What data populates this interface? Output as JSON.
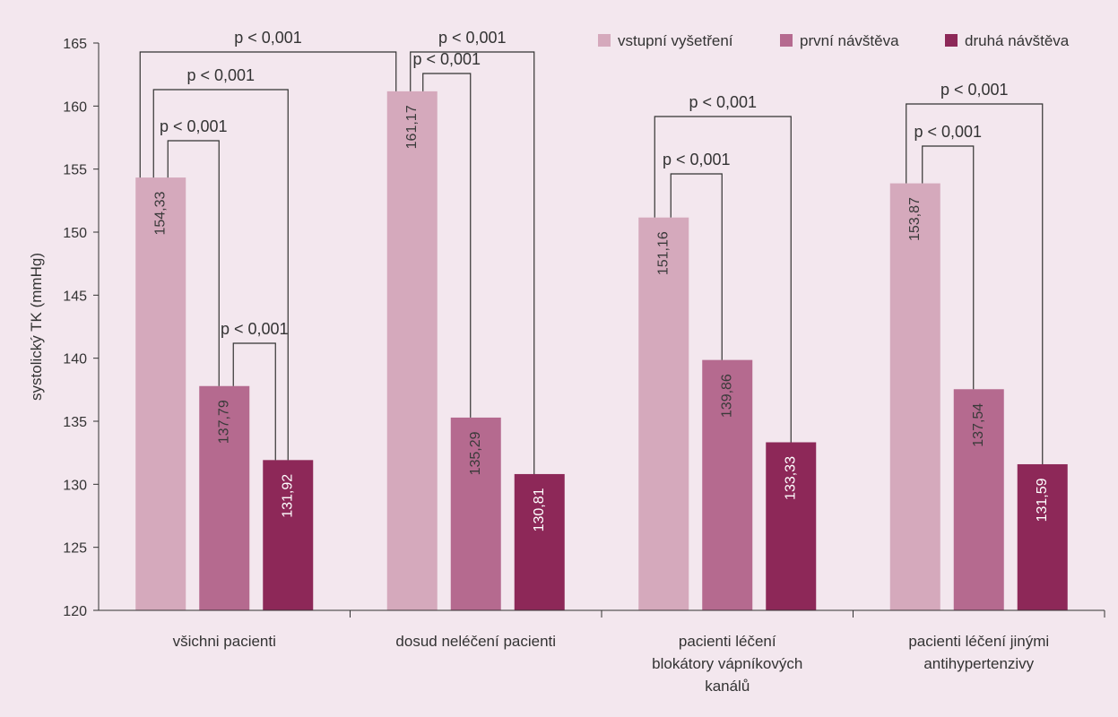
{
  "chart_data": {
    "type": "bar",
    "ylabel": "systolický TK (mmHg)",
    "ylim": [
      120,
      165
    ],
    "yticks": [
      "120",
      "125",
      "130",
      "135",
      "140",
      "145",
      "150",
      "155",
      "160",
      "165"
    ],
    "grid": false,
    "legend_position": "top-right",
    "categories": [
      [
        "všichni pacienti"
      ],
      [
        "dosud neléčení pacienti"
      ],
      [
        "pacienti léčení",
        "blokátory vápníkových",
        "kanálů"
      ],
      [
        "pacienti léčení jinými",
        "antihypertenzivy"
      ]
    ],
    "series": [
      {
        "name": "vstupní vyšetření",
        "color": "#d5a9bc",
        "values": [
          154.33,
          161.17,
          151.16,
          153.87
        ],
        "labels": [
          "154,33",
          "161,17",
          "151,16",
          "153,87"
        ]
      },
      {
        "name": "první návštěva",
        "color": "#b56a8f",
        "values": [
          137.79,
          135.29,
          139.86,
          137.54
        ],
        "labels": [
          "137,79",
          "135,29",
          "139,86",
          "137,54"
        ]
      },
      {
        "name": "druhá návštěva",
        "color": "#8d2858",
        "values": [
          131.92,
          130.81,
          133.33,
          131.59
        ],
        "labels": [
          "131,92",
          "130,81",
          "133,33",
          "131,59"
        ]
      }
    ],
    "annotations": [
      {
        "text": "p < 0,001",
        "group": 0,
        "from": 0,
        "to": 1
      },
      {
        "text": "p < 0,001",
        "group": 0,
        "from": 0,
        "to": 2
      },
      {
        "text": "p < 0,001",
        "group": 0,
        "from": 1,
        "to": 2
      },
      {
        "text": "p < 0,001",
        "group": 1,
        "from": 0,
        "to": 1
      },
      {
        "text": "p < 0,001",
        "group": 1,
        "from": 0,
        "to": 2
      },
      {
        "text": "p < 0,001",
        "group": 2,
        "from": 0,
        "to": 1
      },
      {
        "text": "p < 0,001",
        "group": 2,
        "from": 0,
        "to": 2
      },
      {
        "text": "p < 0,001",
        "group": 3,
        "from": 0,
        "to": 1
      },
      {
        "text": "p < 0,001",
        "group": 3,
        "from": 0,
        "to": 2
      },
      {
        "text": "p < 0,001",
        "group_from": 0,
        "group_to": 1,
        "from": 0,
        "to": 0
      }
    ]
  }
}
